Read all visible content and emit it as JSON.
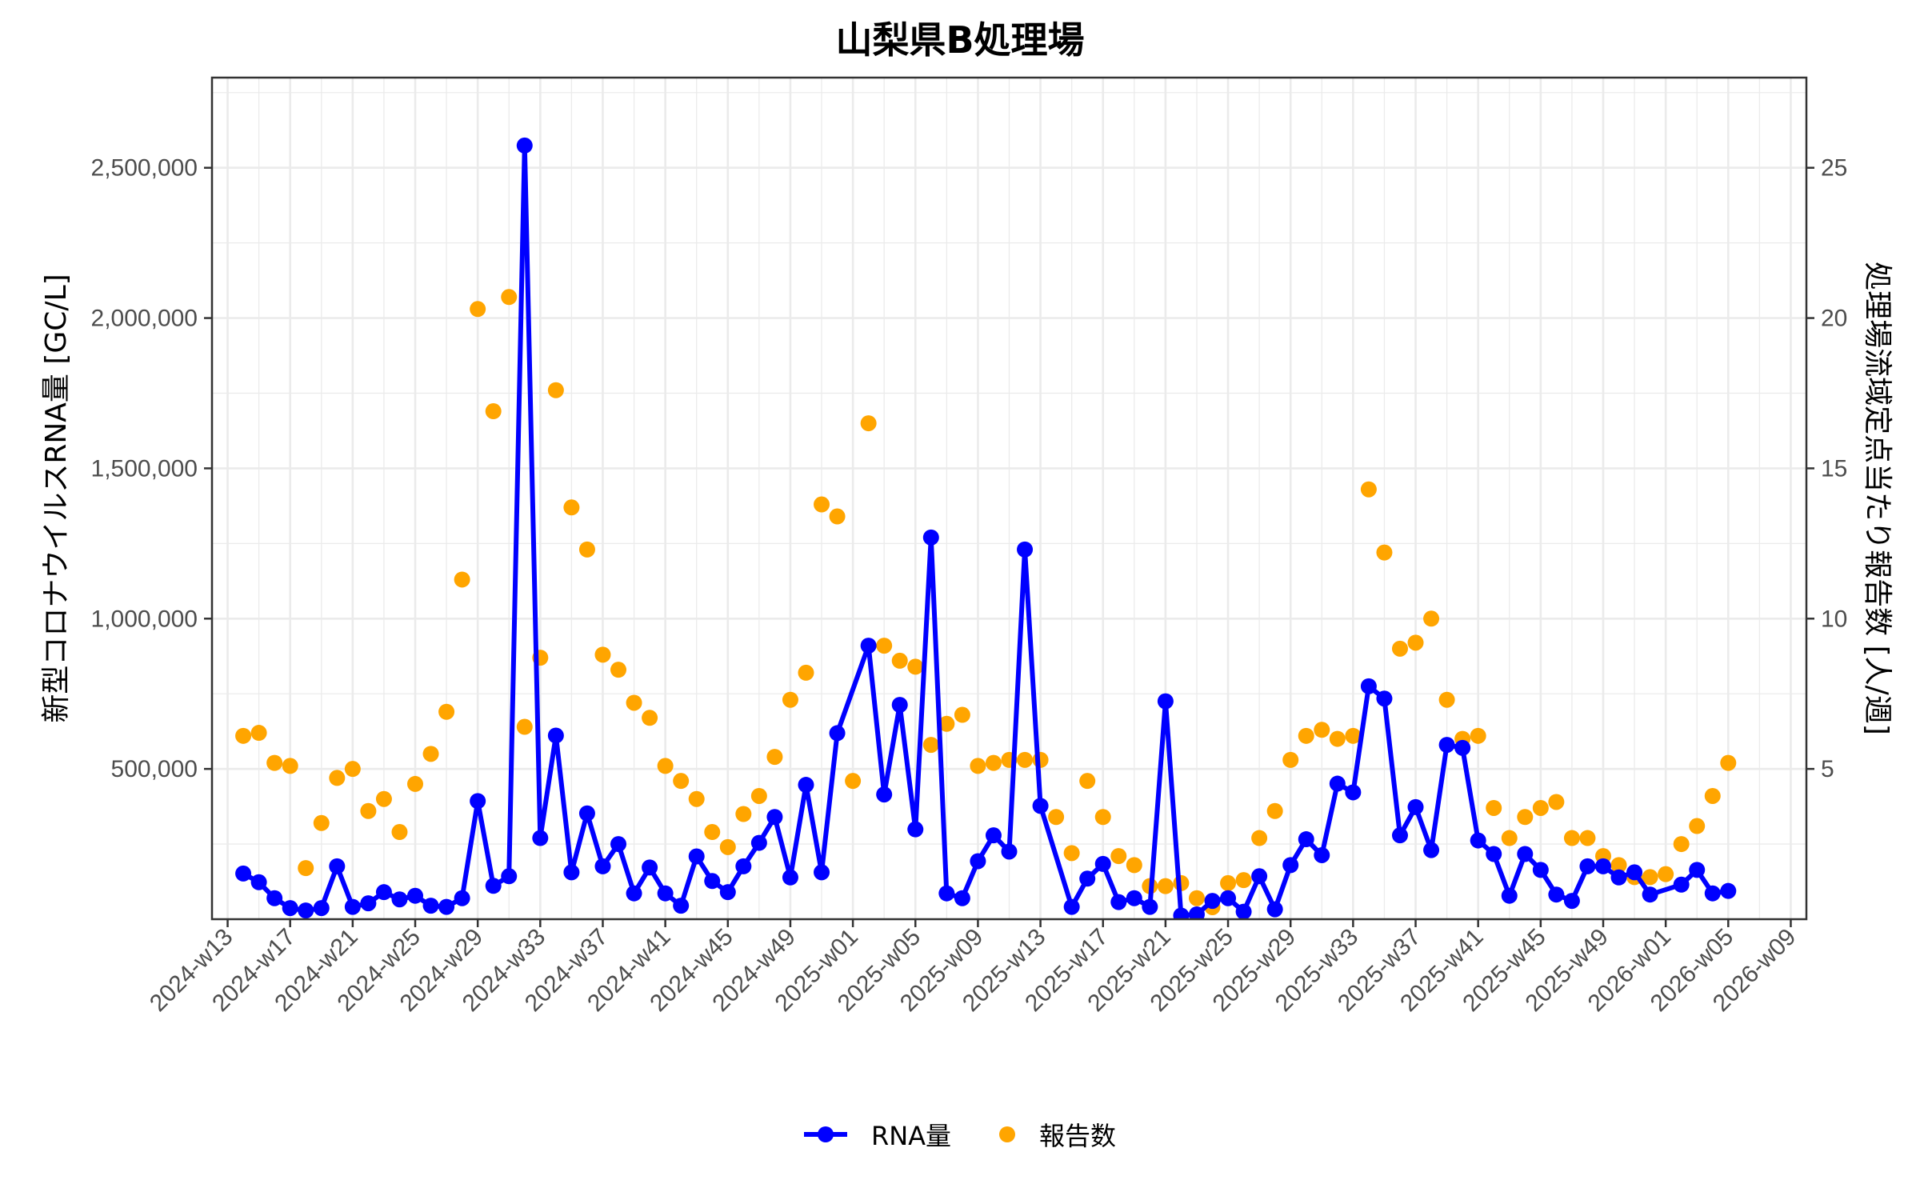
{
  "title": "山梨県B処理場",
  "legend": {
    "rna_label": "RNA量",
    "reports_label": "報告数"
  },
  "colors": {
    "rna": "#0000ff",
    "reports": "#ffa500",
    "grid": "#ebebeb",
    "axis": "#333333"
  },
  "chart_data": {
    "type": "line+scatter",
    "title": "山梨県B処理場",
    "xlabel": "",
    "ylabel": "新型コロナウイルスRNA量 [GC/L]",
    "ylabel_right": "処理場流域定点当たり報告数 [人/週]",
    "x_index_note": "week index 0 = 2024-w13; 2024 has 52 weeks; index 40 = 2025-w01; index 92 = 2026-w01",
    "x_ticks": [
      "2024-w13",
      "2024-w17",
      "2024-w21",
      "2024-w25",
      "2024-w29",
      "2024-w33",
      "2024-w37",
      "2024-w41",
      "2024-w45",
      "2024-w49",
      "2025-w01",
      "2025-w05",
      "2025-w09",
      "2025-w13",
      "2025-w17",
      "2025-w21",
      "2025-w25",
      "2025-w29",
      "2025-w33",
      "2025-w37",
      "2025-w41",
      "2025-w45",
      "2025-w49",
      "2026-w01",
      "2026-w05",
      "2026-w09"
    ],
    "x_range": [
      -1,
      101
    ],
    "ylim": [
      0,
      2800000
    ],
    "y_ticks": [
      500000,
      1000000,
      1500000,
      2000000,
      2500000
    ],
    "y_tick_labels": [
      "500,000",
      "1,000,000",
      "1,500,000",
      "2,000,000",
      "2,500,000"
    ],
    "ylim_right": [
      0,
      28
    ],
    "y_ticks_right": [
      5,
      10,
      15,
      20,
      25
    ],
    "grid": true,
    "legend_position": "bottom",
    "series": [
      {
        "name": "RNA量",
        "axis": "left",
        "style": "line+points",
        "points": [
          [
            1,
            152000
          ],
          [
            2,
            123000
          ],
          [
            3,
            70000
          ],
          [
            4,
            37000
          ],
          [
            5,
            29000
          ],
          [
            6,
            37000
          ],
          [
            7,
            176000
          ],
          [
            8,
            41000
          ],
          [
            9,
            53000
          ],
          [
            10,
            90000
          ],
          [
            11,
            66000
          ],
          [
            12,
            78000
          ],
          [
            13,
            45000
          ],
          [
            14,
            41000
          ],
          [
            15,
            70000
          ],
          [
            16,
            393000
          ],
          [
            17,
            111000
          ],
          [
            18,
            143000
          ],
          [
            19,
            2574000
          ],
          [
            20,
            270000
          ],
          [
            21,
            611000
          ],
          [
            22,
            156000
          ],
          [
            23,
            352000
          ],
          [
            24,
            176000
          ],
          [
            25,
            250000
          ],
          [
            26,
            86000
          ],
          [
            27,
            172000
          ],
          [
            28,
            86000
          ],
          [
            29,
            45000
          ],
          [
            30,
            209000
          ],
          [
            31,
            127000
          ],
          [
            32,
            90000
          ],
          [
            33,
            176000
          ],
          [
            34,
            254000
          ],
          [
            35,
            340000
          ],
          [
            36,
            139000
          ],
          [
            37,
            447000
          ],
          [
            38,
            156000
          ],
          [
            39,
            619000
          ],
          [
            41,
            910000
          ],
          [
            42,
            415000
          ],
          [
            43,
            713000
          ],
          [
            44,
            299000
          ],
          [
            45,
            1270000
          ],
          [
            46,
            86000
          ],
          [
            47,
            70000
          ],
          [
            48,
            193000
          ],
          [
            49,
            279000
          ],
          [
            50,
            225000
          ],
          [
            51,
            1230000
          ],
          [
            52,
            377000
          ],
          [
            54,
            41000
          ],
          [
            55,
            135000
          ],
          [
            56,
            184000
          ],
          [
            57,
            57000
          ],
          [
            58,
            70000
          ],
          [
            59,
            41000
          ],
          [
            60,
            725000
          ],
          [
            61,
            12000
          ],
          [
            62,
            16000
          ],
          [
            63,
            61000
          ],
          [
            64,
            70000
          ],
          [
            65,
            25000
          ],
          [
            66,
            143000
          ],
          [
            67,
            33000
          ],
          [
            68,
            180000
          ],
          [
            69,
            266000
          ],
          [
            70,
            213000
          ],
          [
            71,
            451000
          ],
          [
            72,
            422000
          ],
          [
            73,
            775000
          ],
          [
            74,
            734000
          ],
          [
            75,
            279000
          ],
          [
            76,
            373000
          ],
          [
            77,
            230000
          ],
          [
            78,
            580000
          ],
          [
            79,
            570000
          ],
          [
            80,
            262000
          ],
          [
            81,
            217000
          ],
          [
            82,
            78000
          ],
          [
            83,
            217000
          ],
          [
            84,
            164000
          ],
          [
            85,
            82000
          ],
          [
            86,
            61000
          ],
          [
            87,
            176000
          ],
          [
            88,
            176000
          ],
          [
            89,
            139000
          ],
          [
            90,
            156000
          ],
          [
            91,
            82000
          ],
          [
            93,
            115000
          ],
          [
            94,
            164000
          ],
          [
            95,
            86000
          ],
          [
            96,
            94000
          ]
        ]
      },
      {
        "name": "報告数",
        "axis": "right",
        "style": "points",
        "points": [
          [
            1,
            6.1
          ],
          [
            2,
            6.2
          ],
          [
            3,
            5.2
          ],
          [
            4,
            5.1
          ],
          [
            5,
            1.7
          ],
          [
            6,
            3.2
          ],
          [
            7,
            4.7
          ],
          [
            8,
            5.0
          ],
          [
            9,
            3.6
          ],
          [
            10,
            4.0
          ],
          [
            11,
            2.9
          ],
          [
            12,
            4.5
          ],
          [
            13,
            5.5
          ],
          [
            14,
            6.9
          ],
          [
            15,
            11.3
          ],
          [
            16,
            20.3
          ],
          [
            17,
            16.9
          ],
          [
            18,
            20.7
          ],
          [
            19,
            6.4
          ],
          [
            20,
            8.7
          ],
          [
            21,
            17.6
          ],
          [
            22,
            13.7
          ],
          [
            23,
            12.3
          ],
          [
            24,
            8.8
          ],
          [
            25,
            8.3
          ],
          [
            26,
            7.2
          ],
          [
            27,
            6.7
          ],
          [
            28,
            5.1
          ],
          [
            29,
            4.6
          ],
          [
            30,
            4.0
          ],
          [
            31,
            2.9
          ],
          [
            32,
            2.4
          ],
          [
            33,
            3.5
          ],
          [
            34,
            4.1
          ],
          [
            35,
            5.4
          ],
          [
            36,
            7.3
          ],
          [
            37,
            8.2
          ],
          [
            38,
            13.8
          ],
          [
            39,
            13.4
          ],
          [
            40,
            4.6
          ],
          [
            41,
            16.5
          ],
          [
            42,
            9.1
          ],
          [
            43,
            8.6
          ],
          [
            44,
            8.4
          ],
          [
            45,
            5.8
          ],
          [
            46,
            6.5
          ],
          [
            47,
            6.8
          ],
          [
            48,
            5.1
          ],
          [
            49,
            5.2
          ],
          [
            50,
            5.3
          ],
          [
            51,
            5.3
          ],
          [
            52,
            5.3
          ],
          [
            53,
            3.4
          ],
          [
            54,
            2.2
          ],
          [
            55,
            4.6
          ],
          [
            56,
            3.4
          ],
          [
            57,
            2.1
          ],
          [
            58,
            1.8
          ],
          [
            59,
            1.1
          ],
          [
            60,
            1.1
          ],
          [
            61,
            1.2
          ],
          [
            62,
            0.7
          ],
          [
            63,
            0.4
          ],
          [
            64,
            1.2
          ],
          [
            65,
            1.3
          ],
          [
            66,
            2.7
          ],
          [
            67,
            3.6
          ],
          [
            68,
            5.3
          ],
          [
            69,
            6.1
          ],
          [
            70,
            6.3
          ],
          [
            71,
            6.0
          ],
          [
            72,
            6.1
          ],
          [
            73,
            14.3
          ],
          [
            74,
            12.2
          ],
          [
            75,
            9.0
          ],
          [
            76,
            9.2
          ],
          [
            77,
            10.0
          ],
          [
            78,
            7.3
          ],
          [
            79,
            6.0
          ],
          [
            80,
            6.1
          ],
          [
            81,
            3.7
          ],
          [
            82,
            2.7
          ],
          [
            83,
            3.4
          ],
          [
            84,
            3.7
          ],
          [
            85,
            3.9
          ],
          [
            86,
            2.7
          ],
          [
            87,
            2.7
          ],
          [
            88,
            2.1
          ],
          [
            89,
            1.8
          ],
          [
            90,
            1.4
          ],
          [
            91,
            1.4
          ],
          [
            92,
            1.5
          ],
          [
            93,
            2.5
          ],
          [
            94,
            3.1
          ],
          [
            95,
            4.1
          ],
          [
            96,
            5.2
          ]
        ]
      }
    ]
  }
}
